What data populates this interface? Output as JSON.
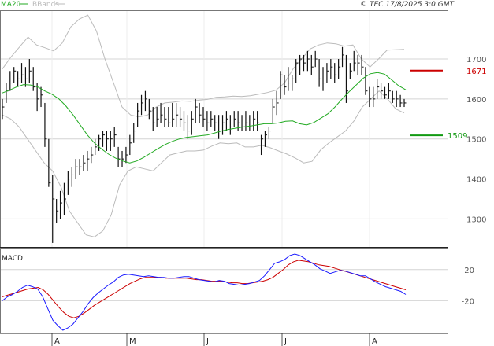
{
  "header": {
    "legend": [
      {
        "label": "MA20",
        "color": "#22aa22"
      },
      {
        "label": "BBands",
        "color": "#bbbbbb"
      }
    ],
    "source": "© TEC 17/8/2025 3:0 GMT"
  },
  "chart_data": [
    {
      "type": "line",
      "x": [
        "A",
        "M",
        "J",
        "J",
        "A"
      ],
      "y_ticks": [
        "1700",
        "1600",
        "1500",
        "1400",
        "1300"
      ],
      "ylim": [
        1230,
        1820
      ],
      "grid": true,
      "ohlc": [
        {
          "h": 1600,
          "l": 1550,
          "c": 1580
        },
        {
          "h": 1640,
          "l": 1590,
          "c": 1620
        },
        {
          "h": 1670,
          "l": 1620,
          "c": 1640
        },
        {
          "h": 1680,
          "l": 1640,
          "c": 1670
        },
        {
          "h": 1670,
          "l": 1630,
          "c": 1650
        },
        {
          "h": 1690,
          "l": 1640,
          "c": 1660
        },
        {
          "h": 1680,
          "l": 1630,
          "c": 1650
        },
        {
          "h": 1700,
          "l": 1640,
          "c": 1670
        },
        {
          "h": 1680,
          "l": 1620,
          "c": 1630
        },
        {
          "h": 1640,
          "l": 1570,
          "c": 1600
        },
        {
          "h": 1630,
          "l": 1580,
          "c": 1610
        },
        {
          "h": 1590,
          "l": 1480,
          "c": 1500
        },
        {
          "h": 1500,
          "l": 1380,
          "c": 1390
        },
        {
          "h": 1410,
          "l": 1240,
          "c": 1350
        },
        {
          "h": 1350,
          "l": 1290,
          "c": 1320
        },
        {
          "h": 1370,
          "l": 1300,
          "c": 1340
        },
        {
          "h": 1390,
          "l": 1310,
          "c": 1350
        },
        {
          "h": 1420,
          "l": 1360,
          "c": 1400
        },
        {
          "h": 1430,
          "l": 1380,
          "c": 1410
        },
        {
          "h": 1450,
          "l": 1400,
          "c": 1430
        },
        {
          "h": 1450,
          "l": 1410,
          "c": 1430
        },
        {
          "h": 1460,
          "l": 1420,
          "c": 1440
        },
        {
          "h": 1470,
          "l": 1420,
          "c": 1450
        },
        {
          "h": 1480,
          "l": 1440,
          "c": 1460
        },
        {
          "h": 1500,
          "l": 1460,
          "c": 1480
        },
        {
          "h": 1510,
          "l": 1470,
          "c": 1500
        },
        {
          "h": 1520,
          "l": 1480,
          "c": 1510
        },
        {
          "h": 1520,
          "l": 1470,
          "c": 1500
        },
        {
          "h": 1520,
          "l": 1470,
          "c": 1500
        },
        {
          "h": 1530,
          "l": 1480,
          "c": 1510
        },
        {
          "h": 1480,
          "l": 1430,
          "c": 1450
        },
        {
          "h": 1470,
          "l": 1430,
          "c": 1450
        },
        {
          "h": 1480,
          "l": 1440,
          "c": 1460
        },
        {
          "h": 1510,
          "l": 1460,
          "c": 1490
        },
        {
          "h": 1540,
          "l": 1490,
          "c": 1520
        },
        {
          "h": 1590,
          "l": 1530,
          "c": 1570
        },
        {
          "h": 1610,
          "l": 1560,
          "c": 1590
        },
        {
          "h": 1620,
          "l": 1570,
          "c": 1600
        },
        {
          "h": 1600,
          "l": 1550,
          "c": 1570
        },
        {
          "h": 1580,
          "l": 1520,
          "c": 1540
        },
        {
          "h": 1580,
          "l": 1530,
          "c": 1550
        },
        {
          "h": 1590,
          "l": 1540,
          "c": 1560
        },
        {
          "h": 1580,
          "l": 1530,
          "c": 1550
        },
        {
          "h": 1580,
          "l": 1530,
          "c": 1540
        },
        {
          "h": 1590,
          "l": 1530,
          "c": 1550
        },
        {
          "h": 1590,
          "l": 1530,
          "c": 1560
        },
        {
          "h": 1580,
          "l": 1530,
          "c": 1550
        },
        {
          "h": 1570,
          "l": 1520,
          "c": 1540
        },
        {
          "h": 1560,
          "l": 1500,
          "c": 1520
        },
        {
          "h": 1570,
          "l": 1510,
          "c": 1550
        },
        {
          "h": 1600,
          "l": 1540,
          "c": 1580
        },
        {
          "h": 1590,
          "l": 1540,
          "c": 1560
        },
        {
          "h": 1580,
          "l": 1530,
          "c": 1550
        },
        {
          "h": 1570,
          "l": 1520,
          "c": 1540
        },
        {
          "h": 1570,
          "l": 1530,
          "c": 1550
        },
        {
          "h": 1560,
          "l": 1520,
          "c": 1540
        },
        {
          "h": 1560,
          "l": 1500,
          "c": 1520
        },
        {
          "h": 1560,
          "l": 1510,
          "c": 1540
        },
        {
          "h": 1570,
          "l": 1520,
          "c": 1550
        },
        {
          "h": 1560,
          "l": 1510,
          "c": 1530
        },
        {
          "h": 1570,
          "l": 1530,
          "c": 1550
        },
        {
          "h": 1570,
          "l": 1520,
          "c": 1540
        },
        {
          "h": 1560,
          "l": 1520,
          "c": 1530
        },
        {
          "h": 1570,
          "l": 1520,
          "c": 1540
        },
        {
          "h": 1560,
          "l": 1520,
          "c": 1530
        },
        {
          "h": 1570,
          "l": 1520,
          "c": 1550
        },
        {
          "h": 1570,
          "l": 1520,
          "c": 1540
        },
        {
          "h": 1510,
          "l": 1460,
          "c": 1500
        },
        {
          "h": 1520,
          "l": 1480,
          "c": 1510
        },
        {
          "h": 1530,
          "l": 1500,
          "c": 1520
        },
        {
          "h": 1600,
          "l": 1540,
          "c": 1580
        },
        {
          "h": 1620,
          "l": 1560,
          "c": 1590
        },
        {
          "h": 1670,
          "l": 1600,
          "c": 1660
        },
        {
          "h": 1660,
          "l": 1610,
          "c": 1630
        },
        {
          "h": 1680,
          "l": 1620,
          "c": 1640
        },
        {
          "h": 1660,
          "l": 1620,
          "c": 1650
        },
        {
          "h": 1700,
          "l": 1640,
          "c": 1690
        },
        {
          "h": 1710,
          "l": 1660,
          "c": 1700
        },
        {
          "h": 1710,
          "l": 1670,
          "c": 1690
        },
        {
          "h": 1720,
          "l": 1670,
          "c": 1700
        },
        {
          "h": 1710,
          "l": 1660,
          "c": 1680
        },
        {
          "h": 1720,
          "l": 1680,
          "c": 1700
        },
        {
          "h": 1700,
          "l": 1630,
          "c": 1650
        },
        {
          "h": 1680,
          "l": 1620,
          "c": 1640
        },
        {
          "h": 1690,
          "l": 1640,
          "c": 1670
        },
        {
          "h": 1700,
          "l": 1650,
          "c": 1680
        },
        {
          "h": 1690,
          "l": 1640,
          "c": 1660
        },
        {
          "h": 1700,
          "l": 1650,
          "c": 1680
        },
        {
          "h": 1730,
          "l": 1680,
          "c": 1710
        },
        {
          "h": 1710,
          "l": 1590,
          "c": 1620
        },
        {
          "h": 1690,
          "l": 1650,
          "c": 1670
        },
        {
          "h": 1720,
          "l": 1670,
          "c": 1690
        },
        {
          "h": 1710,
          "l": 1660,
          "c": 1690
        },
        {
          "h": 1710,
          "l": 1660,
          "c": 1680
        },
        {
          "h": 1680,
          "l": 1610,
          "c": 1620
        },
        {
          "h": 1630,
          "l": 1580,
          "c": 1600
        },
        {
          "h": 1630,
          "l": 1580,
          "c": 1600
        },
        {
          "h": 1650,
          "l": 1600,
          "c": 1630
        },
        {
          "h": 1640,
          "l": 1600,
          "c": 1620
        },
        {
          "h": 1630,
          "l": 1600,
          "c": 1610
        },
        {
          "h": 1640,
          "l": 1600,
          "c": 1620
        },
        {
          "h": 1620,
          "l": 1590,
          "c": 1600
        },
        {
          "h": 1620,
          "l": 1580,
          "c": 1600
        },
        {
          "h": 1610,
          "l": 1580,
          "c": 1590
        },
        {
          "h": 1600,
          "l": 1580,
          "c": 1590
        }
      ],
      "ma20": [
        1615,
        1622,
        1630,
        1636,
        1635,
        1630,
        1620,
        1612,
        1600,
        1582,
        1560,
        1535,
        1510,
        1490,
        1475,
        1462,
        1452,
        1445,
        1440,
        1445,
        1454,
        1465,
        1476,
        1486,
        1494,
        1500,
        1504,
        1506,
        1508,
        1510,
        1515,
        1520,
        1524,
        1527,
        1530,
        1532,
        1535,
        1538,
        1538,
        1540,
        1544,
        1545,
        1538,
        1535,
        1541,
        1552,
        1563,
        1580,
        1600,
        1618,
        1635,
        1652,
        1663,
        1666,
        1662,
        1648,
        1633,
        1623
      ],
      "bb_upper": [
        1675,
        1705,
        1730,
        1755,
        1735,
        1728,
        1720,
        1740,
        1780,
        1800,
        1810,
        1770,
        1700,
        1640,
        1580,
        1560,
        1555,
        1560,
        1580,
        1590,
        1592,
        1595,
        1594,
        1597,
        1599,
        1604,
        1605,
        1607,
        1606,
        1608,
        1612,
        1616,
        1622,
        1640,
        1675,
        1700,
        1725,
        1735,
        1740,
        1738,
        1732,
        1735,
        1700,
        1680,
        1700,
        1722,
        1723,
        1724
      ],
      "bb_lower": [
        1560,
        1550,
        1530,
        1500,
        1470,
        1440,
        1420,
        1380,
        1320,
        1290,
        1260,
        1255,
        1270,
        1310,
        1385,
        1420,
        1430,
        1425,
        1420,
        1440,
        1460,
        1465,
        1470,
        1470,
        1472,
        1482,
        1490,
        1488,
        1490,
        1480,
        1480,
        1484,
        1478,
        1470,
        1462,
        1452,
        1440,
        1444,
        1472,
        1490,
        1505,
        1520,
        1545,
        1580,
        1600,
        1620,
        1600,
        1575,
        1565
      ],
      "yellow_label": "1671",
      "yellow_value": 1671,
      "green_label": "1509",
      "green_value": 1509,
      "series": [
        {
          "name": "MA20",
          "color": "#22aa22"
        },
        {
          "name": "BBands",
          "color": "#bbbbbb"
        }
      ]
    },
    {
      "type": "line",
      "title": "MACD",
      "y_ticks": [
        "20",
        "-20"
      ],
      "ylim": [
        -60,
        45
      ],
      "grid": true,
      "macd_blue": [
        -20,
        -15,
        -12,
        -8,
        -3,
        0,
        -2,
        -5,
        -15,
        -30,
        -45,
        -52,
        -58,
        -55,
        -50,
        -42,
        -34,
        -24,
        -16,
        -10,
        -5,
        0,
        4,
        10,
        13,
        14,
        13,
        12,
        11,
        12,
        11,
        10,
        10,
        9,
        9,
        10,
        11,
        11,
        9,
        7,
        6,
        5,
        4,
        6,
        5,
        2,
        1,
        0,
        1,
        2,
        4,
        6,
        12,
        20,
        28,
        30,
        33,
        38,
        40,
        38,
        34,
        30,
        26,
        21,
        18,
        15,
        17,
        19,
        18,
        16,
        14,
        12,
        12,
        8,
        4,
        1,
        -2,
        -4,
        -6,
        -8,
        -12
      ],
      "macd_red": [
        -15,
        -13,
        -11,
        -9,
        -7,
        -5,
        -4,
        -3,
        -6,
        -12,
        -20,
        -28,
        -35,
        -40,
        -42,
        -40,
        -36,
        -31,
        -26,
        -22,
        -18,
        -14,
        -10,
        -6,
        -2,
        2,
        5,
        8,
        10,
        10,
        10,
        10,
        9,
        9,
        9,
        9,
        9,
        8,
        7,
        7,
        6,
        5,
        5,
        5,
        4,
        3,
        3,
        2,
        2,
        3,
        4,
        5,
        7,
        10,
        15,
        20,
        26,
        30,
        32,
        31,
        30,
        28,
        26,
        25,
        24,
        22,
        20,
        18,
        16,
        14,
        12,
        10,
        8,
        6,
        4,
        2,
        0,
        -2,
        -4,
        -6
      ]
    }
  ]
}
